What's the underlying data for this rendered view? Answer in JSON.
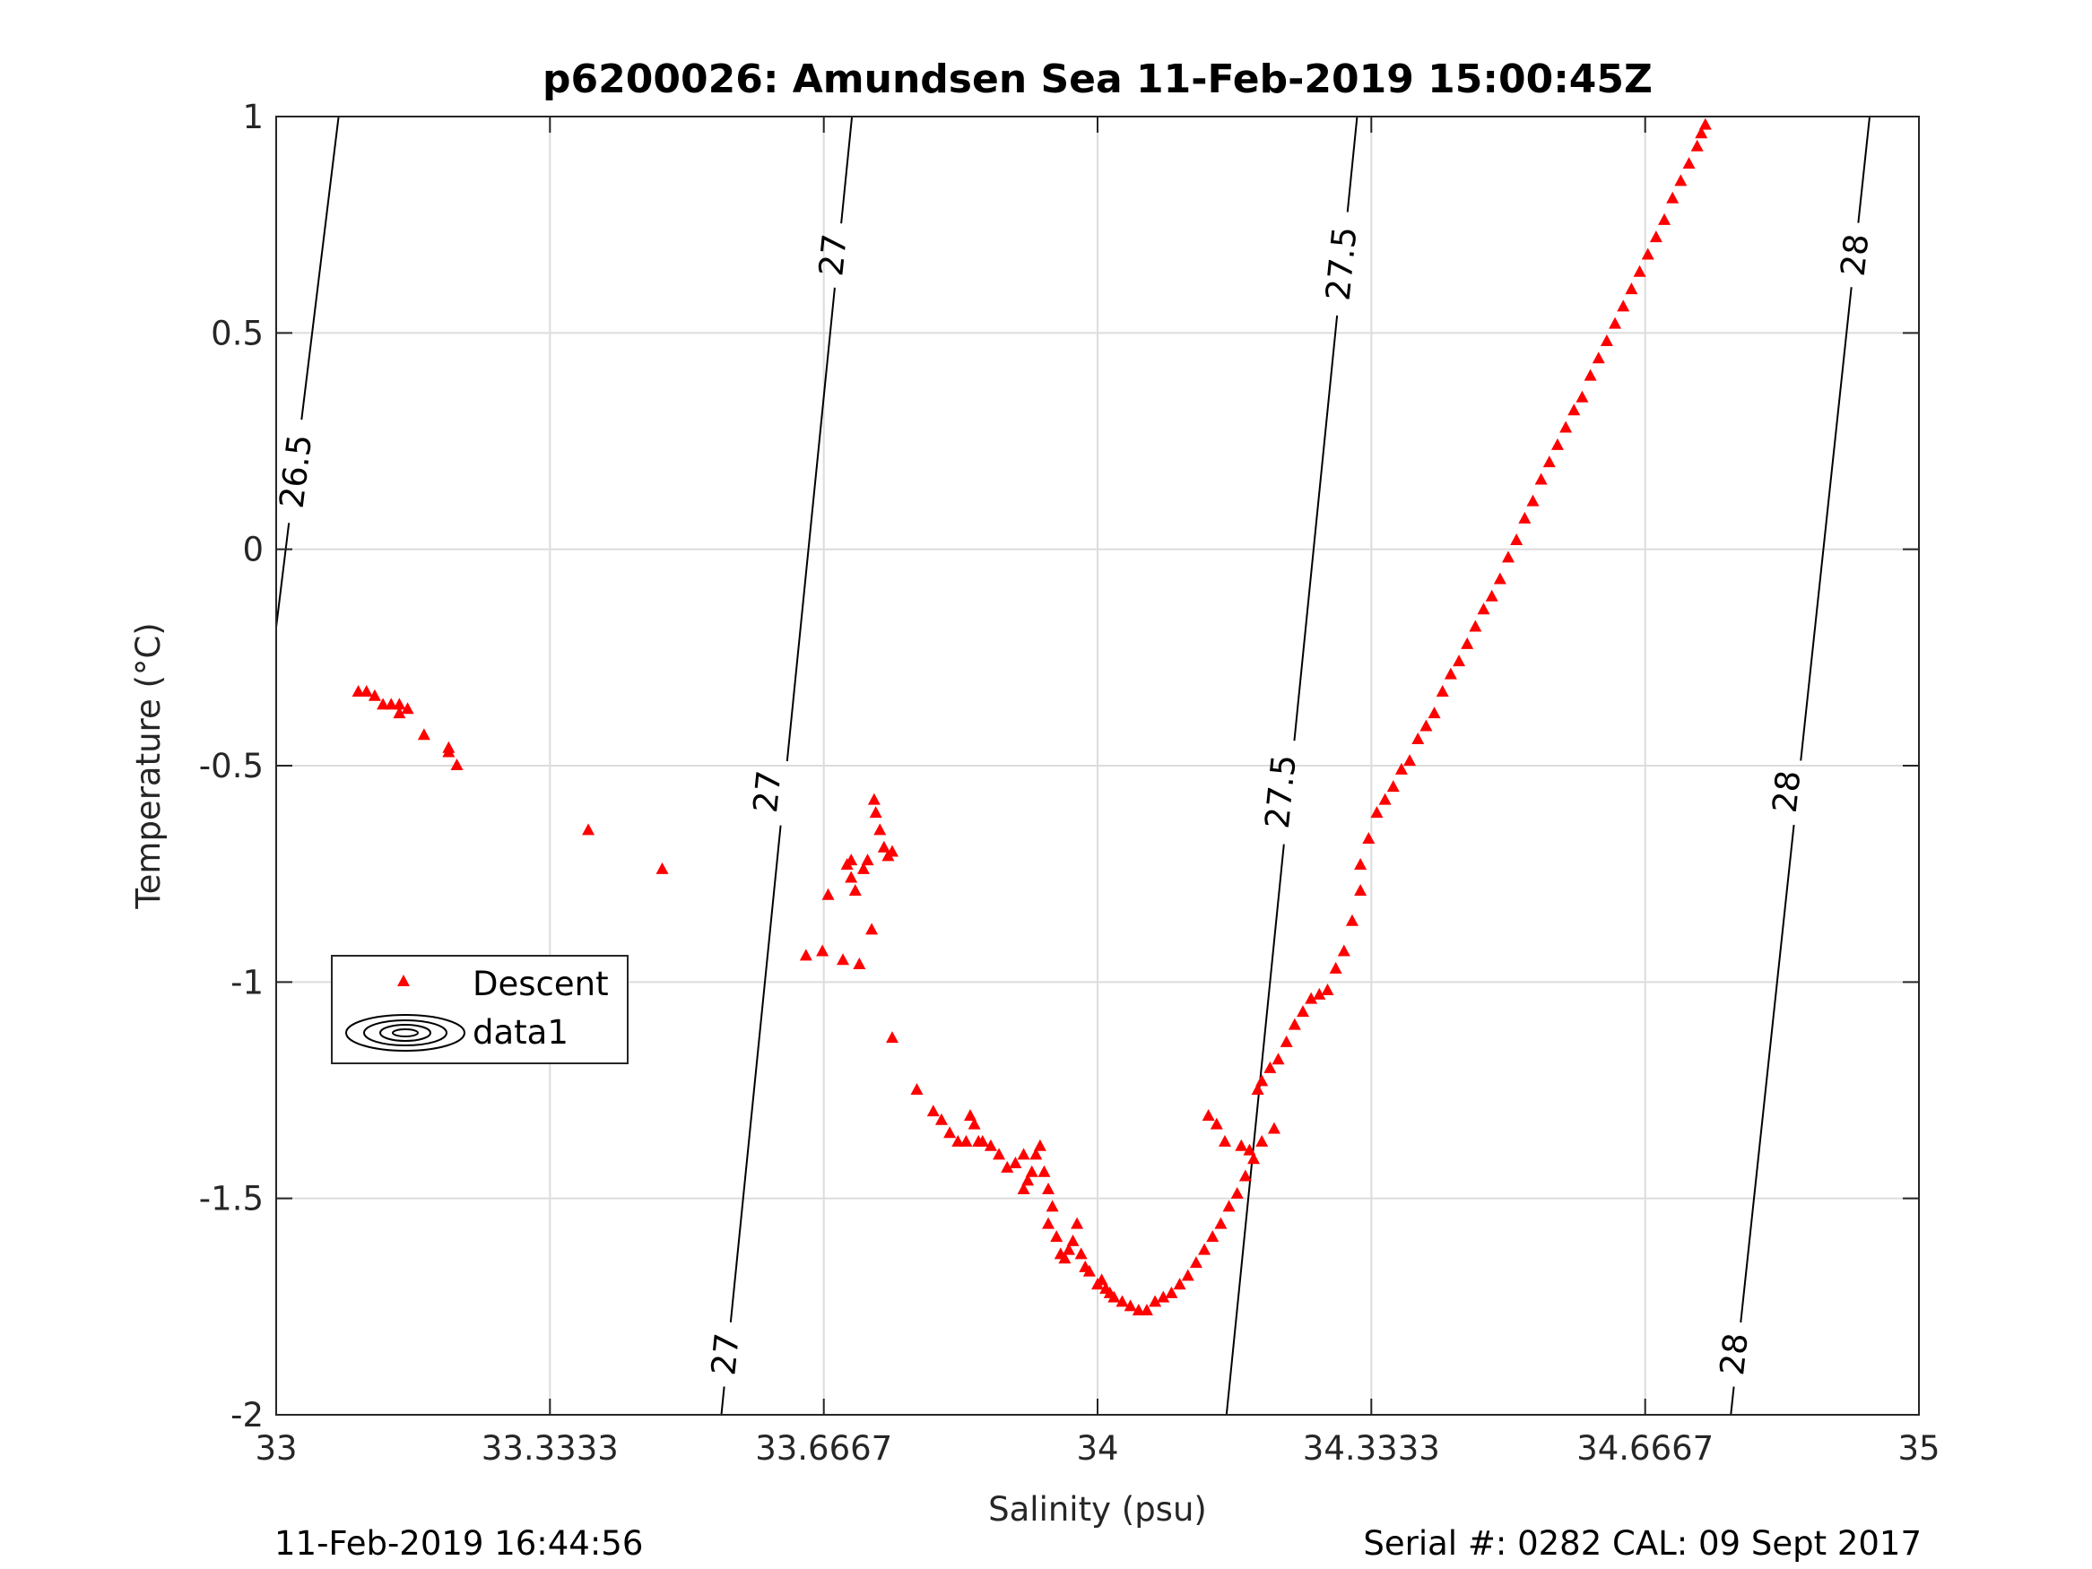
{
  "chart_data": {
    "type": "scatter",
    "title": "p6200026: Amundsen Sea 11-Feb-2019 15:00:45Z",
    "xlabel": "Salinity (psu)",
    "ylabel": "Temperature (°C)",
    "xlim": [
      33,
      35
    ],
    "ylim": [
      -2,
      1
    ],
    "xticks": [
      33,
      33.3333,
      33.6667,
      34,
      34.3333,
      34.6667,
      35
    ],
    "xtick_labels": [
      "33",
      "33.3333",
      "33.6667",
      "34",
      "34.3333",
      "34.6667",
      "35"
    ],
    "yticks": [
      -2,
      -1.5,
      -1,
      -0.5,
      0,
      0.5,
      1
    ],
    "ytick_labels": [
      "-2",
      "-1.5",
      "-1",
      "-0.5",
      "0",
      "0.5",
      "1"
    ],
    "grid": true,
    "legend": {
      "placement": "left-middle",
      "entries": [
        {
          "name": "Descent",
          "marker": "triangle",
          "color": "#ff0000"
        },
        {
          "name": "data1",
          "marker": "contour",
          "color": "#000000"
        }
      ]
    },
    "series": [
      {
        "name": "Descent",
        "marker": "triangle",
        "color": "#ff0000",
        "points": [
          [
            33.1,
            -0.33
          ],
          [
            33.11,
            -0.33
          ],
          [
            33.12,
            -0.34
          ],
          [
            33.13,
            -0.36
          ],
          [
            33.14,
            -0.36
          ],
          [
            33.15,
            -0.36
          ],
          [
            33.15,
            -0.38
          ],
          [
            33.16,
            -0.37
          ],
          [
            33.18,
            -0.43
          ],
          [
            33.21,
            -0.47
          ],
          [
            33.21,
            -0.46
          ],
          [
            33.22,
            -0.5
          ],
          [
            33.38,
            -0.65
          ],
          [
            33.47,
            -0.74
          ],
          [
            33.645,
            -0.94
          ],
          [
            33.665,
            -0.93
          ],
          [
            33.672,
            -0.8
          ],
          [
            33.69,
            -0.95
          ],
          [
            33.695,
            -0.73
          ],
          [
            33.7,
            -0.72
          ],
          [
            33.7,
            -0.76
          ],
          [
            33.705,
            -0.79
          ],
          [
            33.71,
            -0.96
          ],
          [
            33.715,
            -0.74
          ],
          [
            33.72,
            -0.72
          ],
          [
            33.725,
            -0.88
          ],
          [
            33.728,
            -0.58
          ],
          [
            33.73,
            -0.61
          ],
          [
            33.735,
            -0.65
          ],
          [
            33.74,
            -0.69
          ],
          [
            33.745,
            -0.71
          ],
          [
            33.75,
            -0.7
          ],
          [
            33.75,
            -1.13
          ],
          [
            33.78,
            -1.25
          ],
          [
            33.8,
            -1.3
          ],
          [
            33.81,
            -1.32
          ],
          [
            33.82,
            -1.35
          ],
          [
            33.83,
            -1.37
          ],
          [
            33.84,
            -1.37
          ],
          [
            33.845,
            -1.31
          ],
          [
            33.85,
            -1.33
          ],
          [
            33.855,
            -1.37
          ],
          [
            33.86,
            -1.37
          ],
          [
            33.87,
            -1.38
          ],
          [
            33.88,
            -1.4
          ],
          [
            33.89,
            -1.43
          ],
          [
            33.9,
            -1.42
          ],
          [
            33.91,
            -1.4
          ],
          [
            33.91,
            -1.48
          ],
          [
            33.915,
            -1.46
          ],
          [
            33.92,
            -1.44
          ],
          [
            33.925,
            -1.4
          ],
          [
            33.93,
            -1.38
          ],
          [
            33.935,
            -1.44
          ],
          [
            33.94,
            -1.48
          ],
          [
            33.94,
            -1.56
          ],
          [
            33.945,
            -1.52
          ],
          [
            33.95,
            -1.59
          ],
          [
            33.955,
            -1.63
          ],
          [
            33.96,
            -1.64
          ],
          [
            33.965,
            -1.62
          ],
          [
            33.97,
            -1.6
          ],
          [
            33.975,
            -1.56
          ],
          [
            33.98,
            -1.63
          ],
          [
            33.985,
            -1.66
          ],
          [
            33.99,
            -1.67
          ],
          [
            34.0,
            -1.7
          ],
          [
            34.005,
            -1.69
          ],
          [
            34.01,
            -1.71
          ],
          [
            34.015,
            -1.72
          ],
          [
            34.02,
            -1.73
          ],
          [
            34.03,
            -1.74
          ],
          [
            34.04,
            -1.75
          ],
          [
            34.05,
            -1.76
          ],
          [
            34.06,
            -1.76
          ],
          [
            34.07,
            -1.74
          ],
          [
            34.08,
            -1.73
          ],
          [
            34.09,
            -1.72
          ],
          [
            34.1,
            -1.7
          ],
          [
            34.11,
            -1.68
          ],
          [
            34.12,
            -1.65
          ],
          [
            34.13,
            -1.62
          ],
          [
            34.135,
            -1.31
          ],
          [
            34.14,
            -1.59
          ],
          [
            34.145,
            -1.33
          ],
          [
            34.15,
            -1.56
          ],
          [
            34.155,
            -1.37
          ],
          [
            34.16,
            -1.52
          ],
          [
            34.17,
            -1.49
          ],
          [
            34.175,
            -1.38
          ],
          [
            34.18,
            -1.45
          ],
          [
            34.185,
            -1.39
          ],
          [
            34.19,
            -1.41
          ],
          [
            34.195,
            -1.25
          ],
          [
            34.2,
            -1.37
          ],
          [
            34.2,
            -1.23
          ],
          [
            34.21,
            -1.2
          ],
          [
            34.215,
            -1.34
          ],
          [
            34.22,
            -1.18
          ],
          [
            34.23,
            -1.14
          ],
          [
            34.24,
            -1.1
          ],
          [
            34.25,
            -1.07
          ],
          [
            34.26,
            -1.04
          ],
          [
            34.27,
            -1.03
          ],
          [
            34.28,
            -1.02
          ],
          [
            34.29,
            -0.97
          ],
          [
            34.3,
            -0.93
          ],
          [
            34.31,
            -0.86
          ],
          [
            34.32,
            -0.79
          ],
          [
            34.32,
            -0.73
          ],
          [
            34.33,
            -0.67
          ],
          [
            34.34,
            -0.61
          ],
          [
            34.35,
            -0.58
          ],
          [
            34.36,
            -0.55
          ],
          [
            34.37,
            -0.51
          ],
          [
            34.38,
            -0.49
          ],
          [
            34.39,
            -0.44
          ],
          [
            34.4,
            -0.41
          ],
          [
            34.41,
            -0.38
          ],
          [
            34.42,
            -0.33
          ],
          [
            34.43,
            -0.29
          ],
          [
            34.44,
            -0.26
          ],
          [
            34.45,
            -0.22
          ],
          [
            34.46,
            -0.18
          ],
          [
            34.47,
            -0.14
          ],
          [
            34.48,
            -0.11
          ],
          [
            34.49,
            -0.07
          ],
          [
            34.5,
            -0.02
          ],
          [
            34.51,
            0.02
          ],
          [
            34.52,
            0.07
          ],
          [
            34.53,
            0.11
          ],
          [
            34.54,
            0.16
          ],
          [
            34.55,
            0.2
          ],
          [
            34.56,
            0.24
          ],
          [
            34.57,
            0.28
          ],
          [
            34.58,
            0.32
          ],
          [
            34.59,
            0.35
          ],
          [
            34.6,
            0.4
          ],
          [
            34.61,
            0.44
          ],
          [
            34.62,
            0.48
          ],
          [
            34.63,
            0.52
          ],
          [
            34.64,
            0.56
          ],
          [
            34.65,
            0.6
          ],
          [
            34.66,
            0.64
          ],
          [
            34.67,
            0.68
          ],
          [
            34.68,
            0.72
          ],
          [
            34.69,
            0.76
          ],
          [
            34.7,
            0.81
          ],
          [
            34.71,
            0.85
          ],
          [
            34.72,
            0.89
          ],
          [
            34.73,
            0.93
          ],
          [
            34.735,
            0.96
          ],
          [
            34.74,
            0.98
          ]
        ]
      }
    ],
    "contours": [
      {
        "label": "26.5",
        "level": 26.5,
        "line": [
          [
            33.0,
            -0.18
          ],
          [
            33.076,
            1.0
          ]
        ],
        "label_positions": [
          [
            33.024,
            0.18
          ]
        ]
      },
      {
        "label": "27",
        "level": 27,
        "line": [
          [
            33.542,
            -2.0
          ],
          [
            33.701,
            1.0
          ]
        ],
        "label_positions": [
          [
            33.547,
            -1.86
          ],
          [
            33.598,
            -0.56
          ],
          [
            33.678,
            0.68
          ]
        ]
      },
      {
        "label": "27.5",
        "level": 27.5,
        "line": [
          [
            34.157,
            -2.0
          ],
          [
            34.316,
            1.0
          ]
        ],
        "label_positions": [
          [
            34.223,
            -0.56
          ],
          [
            34.297,
            0.66
          ]
        ]
      },
      {
        "label": "28",
        "level": 28,
        "line": [
          [
            34.771,
            -2.0
          ],
          [
            34.94,
            1.0
          ]
        ],
        "label_positions": [
          [
            34.775,
            -1.86
          ],
          [
            34.839,
            -0.56
          ],
          [
            34.922,
            0.68
          ]
        ]
      }
    ]
  },
  "footer": {
    "left": "11-Feb-2019 16:44:56",
    "right": "Serial #: 0282  CAL: 09 Sept 2017"
  }
}
